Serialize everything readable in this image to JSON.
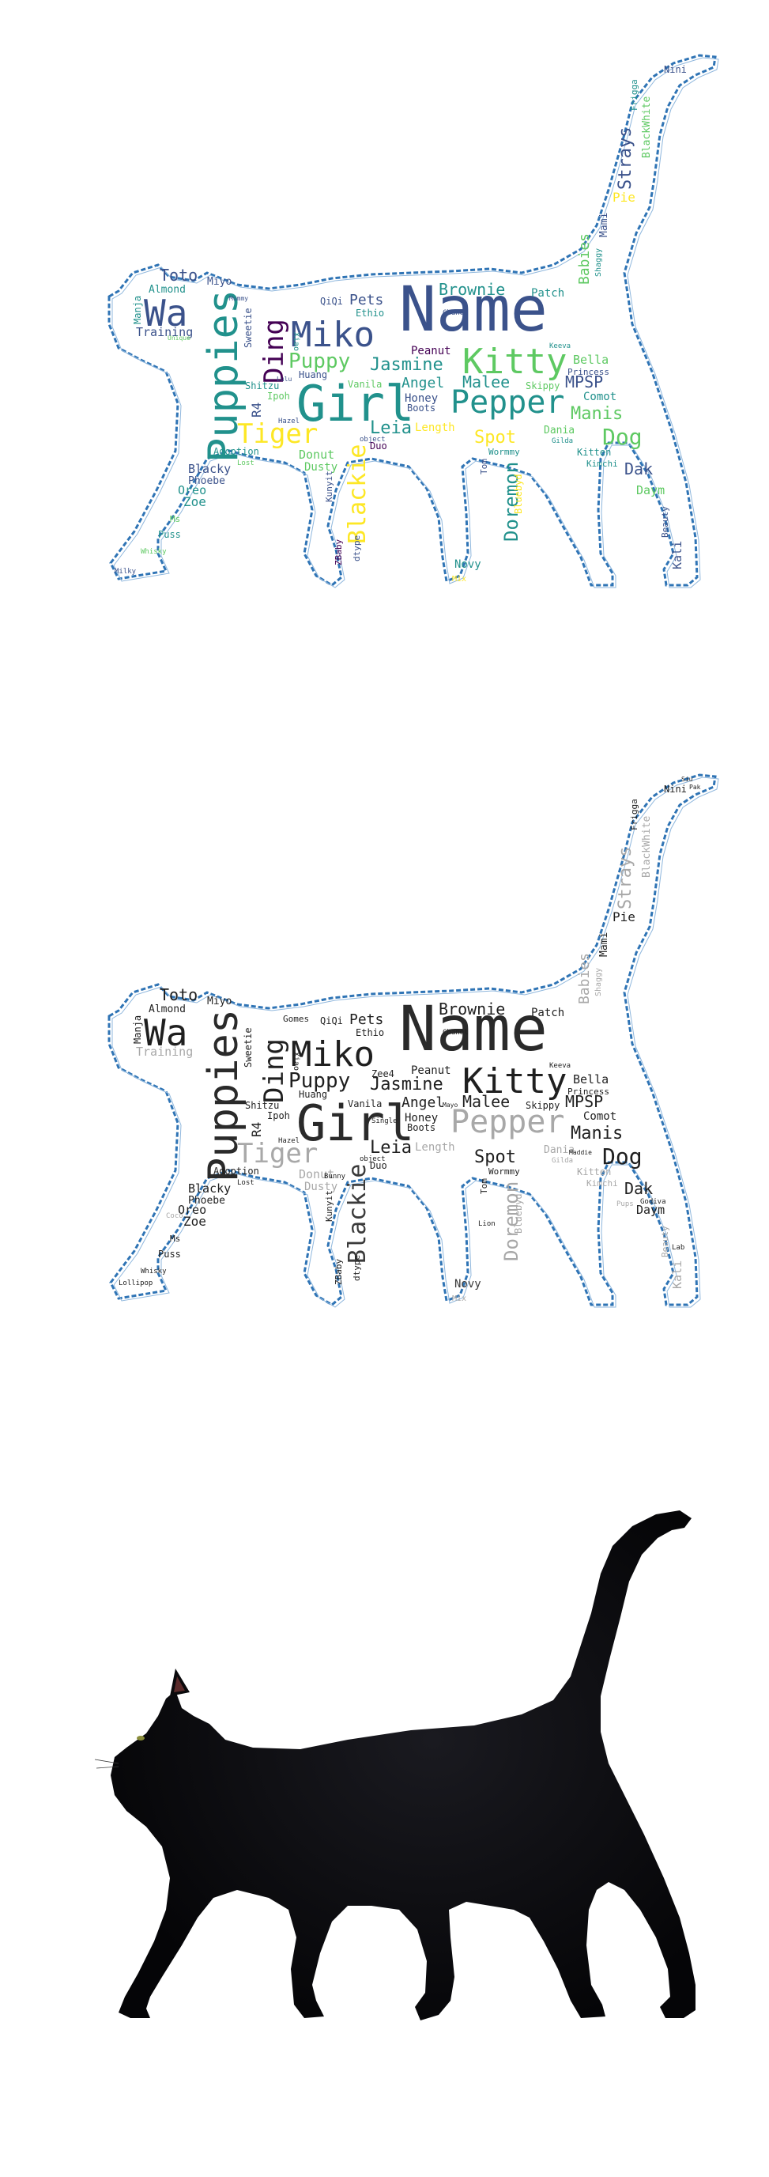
{
  "colors": {
    "outline": "#2f74b5",
    "cat_fur": "#0c0c0e",
    "gray_dark": "#1f1f1f",
    "gray_light": "#a8a8a8",
    "viridis": [
      "#440154",
      "#3b528b",
      "#21918c",
      "#5ec962",
      "#fde725"
    ]
  },
  "words": {
    "name": "Name",
    "girl": "Girl",
    "puppies": "Puppies",
    "kitty": "Kitty",
    "miko": "Miko",
    "wa": "Wa",
    "pepper": "Pepper",
    "ding": "Ding",
    "tiger": "Tiger",
    "puppy": "Puppy",
    "blackie": "Blackie",
    "doremon": "Doremon",
    "dog": "Dog",
    "manis": "Manis",
    "jasmine": "Jasmine",
    "brownie": "Brownie",
    "mpsp": "MPSP",
    "malee": "Malee",
    "strays": "Strays",
    "babies": "Babies",
    "leia": "Leia",
    "spot": "Spot",
    "toto": "Toto",
    "angel": "Angel",
    "dak": "Dak",
    "pets": "Pets",
    "training": "Training",
    "blackwhite": "BlackWhite",
    "bella": "Bella",
    "patch": "Patch",
    "comot": "Comot",
    "honey": "Honey",
    "peanut": "Peanut",
    "zoe": "Zoe",
    "oreo": "Oreo",
    "blacky": "Blacky",
    "phoebe": "Phoebe",
    "kali": "Kali",
    "daym": "Daym",
    "novy": "Novy",
    "donut": "Donut",
    "dusty": "Dusty",
    "pie": "Pie",
    "frigga": "Frigga",
    "nini": "Nini",
    "miyo": "Miyo",
    "almond": "Almond",
    "manja": "Manja",
    "qiqi": "QiQi",
    "ethio": "Ethio",
    "huang": "Huang",
    "vanila": "Vanila",
    "ipoh": "Ipoh",
    "shitzu": "Shitzu",
    "r4": "R4",
    "adoption": "Adoption",
    "length": "Length",
    "boots": "Boots",
    "duo": "Duo",
    "kitten": "Kitten",
    "princess": "Princess",
    "skippy": "Skippy",
    "wormmy": "Wormmy",
    "tom": "Tom",
    "dania": "Dania",
    "kimchi": "Kimchi",
    "beauty": "Beauty",
    "mami": "Mami",
    "shaggy": "Shaggy",
    "puss": "Puss",
    "ms": "Ms",
    "whisky": "Whisky",
    "milky": "Milky",
    "sweetie": "Sweetie",
    "xiao": "Xiao",
    "kunyit": "Kunyit",
    "dtype": "dtype",
    "baby": "ZBaby",
    "bluebyd": "Bluebyd",
    "chanel": "Chanel",
    "keeva": "Keeva",
    "gilda": "Gilda",
    "lost": "Lost",
    "hazel": "Hazel",
    "object": "object",
    "mix": "Mix",
    "gomes": "Gomes",
    "zee4": "Zee4",
    "single": "Single",
    "lion": "Lion",
    "bunny": "Bunny",
    "lollipop": "Lollipop",
    "coco": "Coco",
    "lab": "Lab",
    "godiva": "Godiva",
    "pups": "Pups",
    "maddie": "Maddie",
    "mayo": "Mayo",
    "siu": "Siu",
    "pak": "Pak",
    "pa": "Pa",
    "shubu": "Shubu",
    "unique": "Unique",
    "mummy": "Mummy",
    "lulu": "Lulu"
  }
}
